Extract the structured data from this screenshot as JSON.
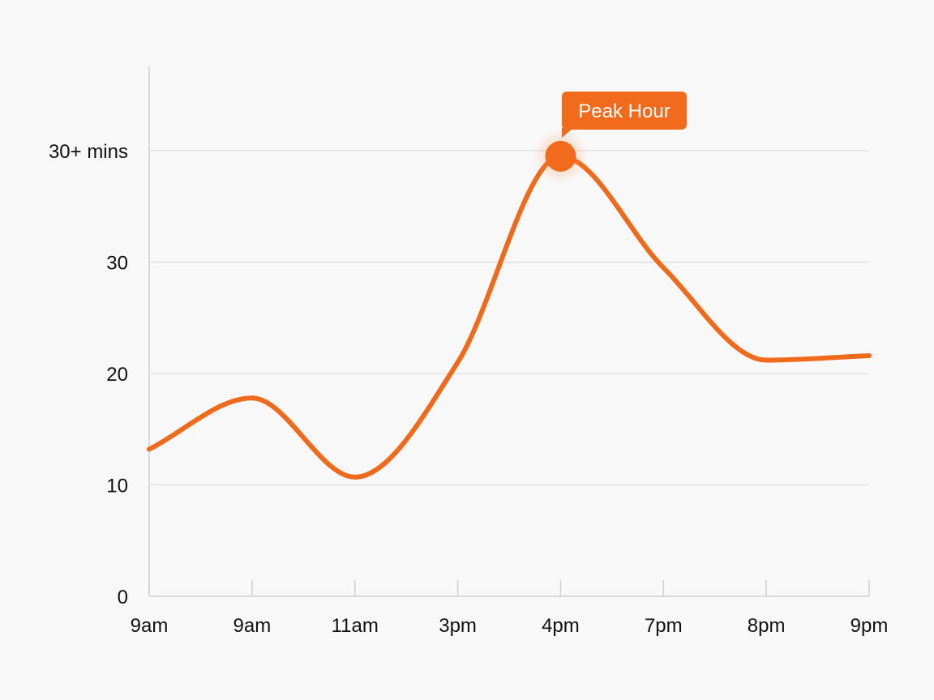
{
  "chart_data": {
    "type": "line",
    "title": "",
    "xlabel": "",
    "ylabel": "",
    "x": [
      "9am",
      "9am",
      "11am",
      "3pm",
      "4pm",
      "7pm",
      "8pm",
      "9pm"
    ],
    "y_ticks": [
      {
        "value": 0,
        "label": "0"
      },
      {
        "value": 10,
        "label": "10"
      },
      {
        "value": 20,
        "label": "20"
      },
      {
        "value": 30,
        "label": "30"
      },
      {
        "value": 40,
        "label": "30+ mins"
      }
    ],
    "ylim": [
      0,
      40
    ],
    "grid": true,
    "legend": "none",
    "series": [
      {
        "values": [
          13.2,
          17.8,
          10.7,
          21.0,
          39.5,
          29.5,
          21.2,
          21.6
        ]
      }
    ],
    "annotation": {
      "label": "Peak Hour",
      "x_index": 4,
      "value": 39.5
    },
    "colors": {
      "line": "#f06a1c",
      "grid": "#e2e2e2",
      "axis": "#cfcfcf",
      "text": "#111111",
      "callout": "#f26a1b"
    }
  }
}
